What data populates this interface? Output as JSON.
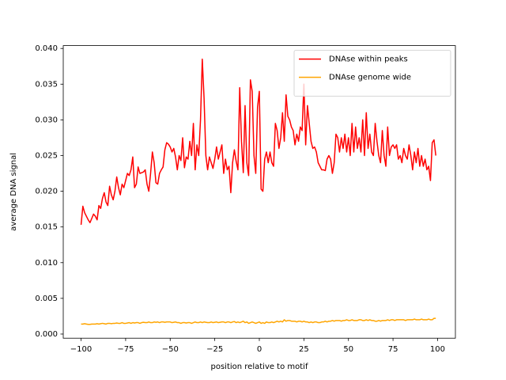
{
  "chart_data": {
    "type": "line",
    "xlabel": "position relative to motif",
    "ylabel": "average DNA signal",
    "legend": "upper right",
    "grid": false,
    "xlim": [
      -110,
      110
    ],
    "ylim": [
      -0.00058,
      0.0404
    ],
    "xticks": [
      {
        "value": -100,
        "label": "−100"
      },
      {
        "value": -75,
        "label": "−75"
      },
      {
        "value": -50,
        "label": "−50"
      },
      {
        "value": -25,
        "label": "−25"
      },
      0,
      25,
      50,
      75,
      100
    ],
    "yticks": [
      {
        "value": 0,
        "label": "0.000"
      },
      {
        "value": 0.005,
        "label": "0.005"
      },
      {
        "value": 0.01,
        "label": "0.010"
      },
      {
        "value": 0.015,
        "label": "0.015"
      },
      {
        "value": 0.02,
        "label": "0.020"
      },
      {
        "value": 0.025,
        "label": "0.025"
      },
      {
        "value": 0.03,
        "label": "0.030"
      },
      {
        "value": 0.035,
        "label": "0.035"
      },
      {
        "value": 0.04,
        "label": "0.040"
      }
    ],
    "x": [
      -100,
      -99,
      -98,
      -97,
      -96,
      -95,
      -94,
      -93,
      -92,
      -91,
      -90,
      -89,
      -88,
      -87,
      -86,
      -85,
      -84,
      -83,
      -82,
      -81,
      -80,
      -79,
      -78,
      -77,
      -76,
      -75,
      -74,
      -73,
      -72,
      -71,
      -70,
      -69,
      -68,
      -67,
      -66,
      -65,
      -64,
      -63,
      -62,
      -61,
      -60,
      -59,
      -58,
      -57,
      -56,
      -55,
      -54,
      -53,
      -52,
      -51,
      -50,
      -49,
      -48,
      -47,
      -46,
      -45,
      -44,
      -43,
      -42,
      -41,
      -40,
      -39,
      -38,
      -37,
      -36,
      -35,
      -34,
      -33,
      -32,
      -31,
      -30,
      -29,
      -28,
      -27,
      -26,
      -25,
      -24,
      -23,
      -22,
      -21,
      -20,
      -19,
      -18,
      -17,
      -16,
      -15,
      -14,
      -13,
      -12,
      -11,
      -10,
      -9,
      -8,
      -7,
      -6,
      -5,
      -4,
      -3,
      -2,
      -1,
      0,
      1,
      2,
      3,
      4,
      5,
      6,
      7,
      8,
      9,
      10,
      11,
      12,
      13,
      14,
      15,
      16,
      17,
      18,
      19,
      20,
      21,
      22,
      23,
      24,
      25,
      26,
      27,
      28,
      29,
      30,
      31,
      32,
      33,
      34,
      35,
      36,
      37,
      38,
      39,
      40,
      41,
      42,
      43,
      44,
      45,
      46,
      47,
      48,
      49,
      50,
      51,
      52,
      53,
      54,
      55,
      56,
      57,
      58,
      59,
      60,
      61,
      62,
      63,
      64,
      65,
      66,
      67,
      68,
      69,
      70,
      71,
      72,
      73,
      74,
      75,
      76,
      77,
      78,
      79,
      80,
      81,
      82,
      83,
      84,
      85,
      86,
      87,
      88,
      89,
      90,
      91,
      92,
      93,
      94,
      95,
      96,
      97,
      98,
      99
    ],
    "series": [
      {
        "name": "DNAse within peaks",
        "color": "#ff0000",
        "values": [
          0.0153,
          0.0179,
          0.017,
          0.0165,
          0.016,
          0.0156,
          0.0162,
          0.0168,
          0.0165,
          0.016,
          0.018,
          0.0176,
          0.019,
          0.0198,
          0.0185,
          0.018,
          0.0207,
          0.0195,
          0.0188,
          0.02,
          0.022,
          0.0205,
          0.0195,
          0.021,
          0.0205,
          0.0215,
          0.0225,
          0.0222,
          0.023,
          0.0248,
          0.0205,
          0.021,
          0.0234,
          0.0225,
          0.0226,
          0.0227,
          0.023,
          0.021,
          0.02,
          0.0225,
          0.0255,
          0.024,
          0.0212,
          0.021,
          0.0225,
          0.023,
          0.0234,
          0.0258,
          0.0268,
          0.0266,
          0.0262,
          0.0255,
          0.026,
          0.0248,
          0.023,
          0.025,
          0.0243,
          0.0275,
          0.0233,
          0.0248,
          0.0245,
          0.027,
          0.025,
          0.0295,
          0.023,
          0.0265,
          0.025,
          0.03,
          0.0385,
          0.033,
          0.025,
          0.023,
          0.0248,
          0.024,
          0.0232,
          0.0245,
          0.0262,
          0.0245,
          0.0255,
          0.0265,
          0.0225,
          0.0245,
          0.023,
          0.0235,
          0.0198,
          0.024,
          0.0258,
          0.0242,
          0.023,
          0.0345,
          0.027,
          0.0226,
          0.032,
          0.024,
          0.0222,
          0.0356,
          0.034,
          0.025,
          0.0225,
          0.0318,
          0.034,
          0.0203,
          0.02,
          0.0245,
          0.0255,
          0.024,
          0.0255,
          0.024,
          0.0235,
          0.0295,
          0.0285,
          0.026,
          0.0275,
          0.031,
          0.027,
          0.0335,
          0.0305,
          0.03,
          0.029,
          0.0285,
          0.0265,
          0.028,
          0.027,
          0.029,
          0.0285,
          0.035,
          0.0265,
          0.032,
          0.0295,
          0.027,
          0.026,
          0.0262,
          0.0255,
          0.024,
          0.0235,
          0.023,
          0.023,
          0.0229,
          0.0245,
          0.025,
          0.0245,
          0.0225,
          0.024,
          0.028,
          0.0275,
          0.0255,
          0.0275,
          0.026,
          0.028,
          0.0255,
          0.0275,
          0.025,
          0.0295,
          0.0255,
          0.029,
          0.026,
          0.0275,
          0.0255,
          0.03,
          0.025,
          0.031,
          0.026,
          0.028,
          0.0255,
          0.025,
          0.0295,
          0.027,
          0.025,
          0.024,
          0.0285,
          0.025,
          0.0235,
          0.029,
          0.025,
          0.0262,
          0.0265,
          0.026,
          0.0265,
          0.0245,
          0.025,
          0.024,
          0.026,
          0.025,
          0.0245,
          0.0265,
          0.025,
          0.023,
          0.0255,
          0.024,
          0.026,
          0.0235,
          0.025,
          0.0235,
          0.0245,
          0.023,
          0.0235,
          0.0215,
          0.0268,
          0.0272,
          0.025
        ]
      },
      {
        "name": "DNAse genome wide",
        "color": "#ffa500",
        "values": [
          0.0014,
          0.0014,
          0.00145,
          0.0014,
          0.00135,
          0.00135,
          0.0014,
          0.0014,
          0.0014,
          0.00145,
          0.0014,
          0.00145,
          0.0015,
          0.00145,
          0.0014,
          0.0015,
          0.0015,
          0.00145,
          0.0015,
          0.0015,
          0.00155,
          0.0015,
          0.0015,
          0.0016,
          0.0015,
          0.0015,
          0.00155,
          0.0016,
          0.0015,
          0.0016,
          0.00155,
          0.0016,
          0.0016,
          0.0015,
          0.0016,
          0.00165,
          0.0016,
          0.0016,
          0.0017,
          0.0016,
          0.0016,
          0.0017,
          0.00165,
          0.0017,
          0.0016,
          0.0017,
          0.0017,
          0.00165,
          0.0017,
          0.0017,
          0.0017,
          0.0016,
          0.00165,
          0.0017,
          0.0016,
          0.0016,
          0.0015,
          0.0016,
          0.0016,
          0.00155,
          0.0016,
          0.0016,
          0.0015,
          0.0016,
          0.0017,
          0.0016,
          0.0016,
          0.0017,
          0.0016,
          0.0017,
          0.00165,
          0.0016,
          0.0016,
          0.0017,
          0.0016,
          0.00165,
          0.0017,
          0.0016,
          0.00165,
          0.0017,
          0.0017,
          0.0016,
          0.0017,
          0.0017,
          0.0016,
          0.0017,
          0.00175,
          0.0016,
          0.0017,
          0.0016,
          0.0017,
          0.0018,
          0.0016,
          0.0017,
          0.0015,
          0.0016,
          0.0017,
          0.0016,
          0.0015,
          0.0016,
          0.0017,
          0.0015,
          0.0016,
          0.0015,
          0.0017,
          0.0016,
          0.0016,
          0.0017,
          0.0016,
          0.0017,
          0.0018,
          0.0017,
          0.0018,
          0.0017,
          0.002,
          0.0018,
          0.0019,
          0.0019,
          0.0018,
          0.0018,
          0.0018,
          0.0017,
          0.0018,
          0.0018,
          0.0017,
          0.0018,
          0.0017,
          0.0017,
          0.0016,
          0.0017,
          0.0016,
          0.0017,
          0.0017,
          0.0016,
          0.0016,
          0.0017,
          0.0017,
          0.0018,
          0.0017,
          0.0018,
          0.0018,
          0.0019,
          0.0018,
          0.0019,
          0.0019,
          0.0019,
          0.0018,
          0.0019,
          0.0019,
          0.002,
          0.0019,
          0.0019,
          0.002,
          0.0019,
          0.0019,
          0.0019,
          0.002,
          0.002,
          0.0019,
          0.0019,
          0.002,
          0.0019,
          0.002,
          0.0019,
          0.0019,
          0.0018,
          0.0018,
          0.0019,
          0.0018,
          0.0019,
          0.0019,
          0.0019,
          0.002,
          0.0019,
          0.002,
          0.002,
          0.0019,
          0.002,
          0.002,
          0.002,
          0.002,
          0.002,
          0.0019,
          0.002,
          0.002,
          0.002,
          0.002,
          0.0021,
          0.002,
          0.002,
          0.002,
          0.0021,
          0.002,
          0.002,
          0.002,
          0.0021,
          0.002,
          0.002,
          0.0022,
          0.0022
        ]
      }
    ]
  }
}
